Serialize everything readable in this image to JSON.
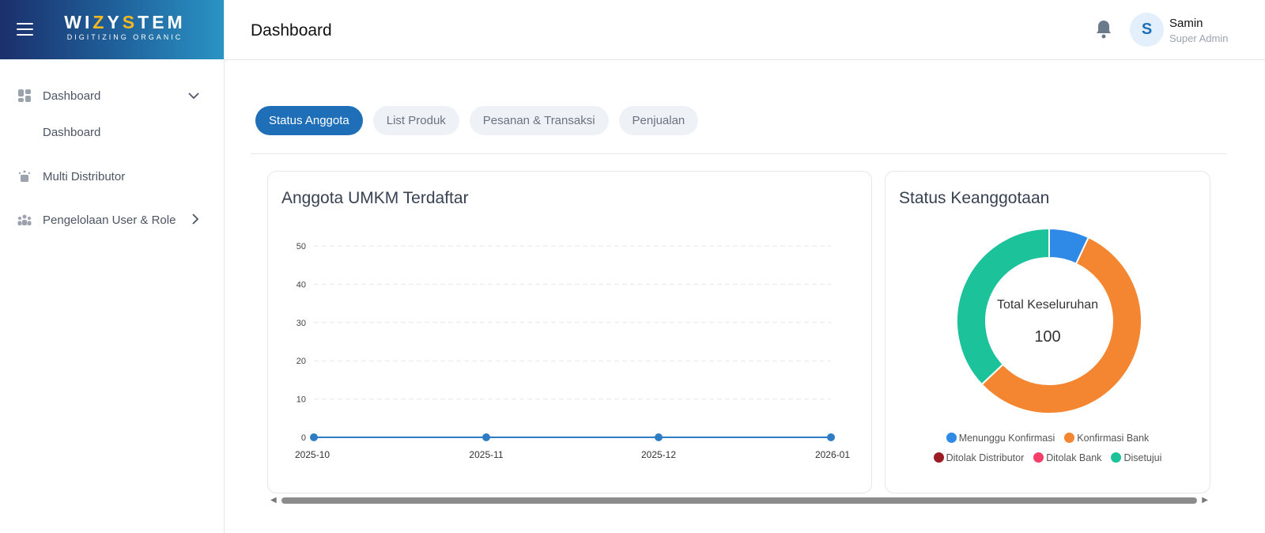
{
  "brand": {
    "logo_text": "WIZYSTEM",
    "tagline": "DIGITIZING ORGANIC"
  },
  "sidebar": {
    "items": [
      {
        "label": "Dashboard",
        "icon": "dashboard-icon",
        "expanded": true
      },
      {
        "label": "Dashboard"
      },
      {
        "label": "Multi Distributor",
        "icon": "distributor-icon"
      },
      {
        "label": "Pengelolaan User & Role",
        "icon": "users-icon"
      }
    ]
  },
  "header": {
    "title": "Dashboard",
    "user": {
      "initial": "S",
      "name": "Samin",
      "role": "Super Admin"
    }
  },
  "tabs": [
    {
      "label": "Status Anggota",
      "active": true
    },
    {
      "label": "List Produk"
    },
    {
      "label": "Pesanan & Transaksi"
    },
    {
      "label": "Penjualan"
    }
  ],
  "colors": {
    "accent": "#1e6fb8",
    "line": "#2f7cc4"
  },
  "chart_data": [
    {
      "type": "line",
      "title": "Anggota UMKM Terdaftar",
      "x": [
        "2025-10",
        "2025-11",
        "2025-12",
        "2026-01"
      ],
      "values": [
        0,
        0,
        0,
        0
      ],
      "ylim": [
        0,
        50
      ],
      "yticks": [
        "0",
        "10",
        "20",
        "30",
        "40",
        "50"
      ],
      "grid": true
    },
    {
      "type": "pie",
      "title": "Status Keanggotaan",
      "center_label": "Total Keseluruhan",
      "center_value": "100",
      "legend": "bottom",
      "series": [
        {
          "name": "Menunggu Konfirmasi",
          "value": 7,
          "color": "#2e8ae6"
        },
        {
          "name": "Konfirmasi Bank",
          "value": 56,
          "color": "#f58631"
        },
        {
          "name": "Ditolak Distributor",
          "value": 0,
          "color": "#9b1c24"
        },
        {
          "name": "Ditolak Bank",
          "value": 0,
          "color": "#f43f6a"
        },
        {
          "name": "Disetujui",
          "value": 37,
          "color": "#1cc29a"
        }
      ]
    }
  ]
}
